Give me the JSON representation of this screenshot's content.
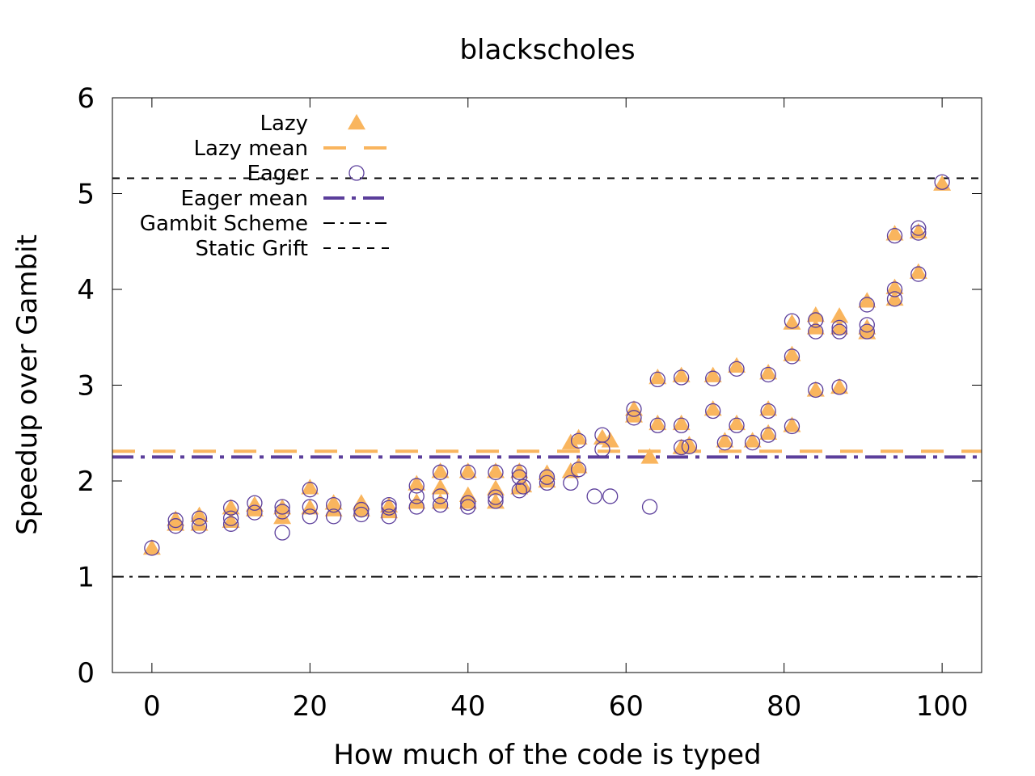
{
  "chart_data": {
    "type": "scatter",
    "title": "blackscholes",
    "xlabel": "How much of the code is typed",
    "ylabel": "Speedup over Gambit",
    "xlim": [
      -5,
      105
    ],
    "ylim": [
      0,
      6
    ],
    "xticks": [
      0,
      20,
      40,
      60,
      80,
      100
    ],
    "yticks": [
      0,
      1,
      2,
      3,
      4,
      5,
      6
    ],
    "grid": false,
    "legend_placement": "top-left",
    "colors": {
      "lazy": "#f9b55e",
      "eager": "#5b3e9b",
      "reference": "#000000"
    },
    "series": [
      {
        "name": "Lazy",
        "marker": "filled-triangle",
        "points": [
          [
            0,
            1.3
          ],
          [
            3,
            1.55
          ],
          [
            3,
            1.6
          ],
          [
            6,
            1.55
          ],
          [
            6,
            1.64
          ],
          [
            10,
            1.58
          ],
          [
            10,
            1.72
          ],
          [
            13,
            1.7
          ],
          [
            13,
            1.75
          ],
          [
            16.5,
            1.62
          ],
          [
            16.5,
            1.72
          ],
          [
            20,
            1.72
          ],
          [
            20,
            1.93
          ],
          [
            23,
            1.7
          ],
          [
            23,
            1.77
          ],
          [
            26.5,
            1.7
          ],
          [
            26.5,
            1.77
          ],
          [
            30,
            1.68
          ],
          [
            30,
            1.74
          ],
          [
            33.5,
            1.78
          ],
          [
            33.5,
            1.97
          ],
          [
            36.5,
            1.78
          ],
          [
            36.5,
            1.93
          ],
          [
            36.5,
            2.1
          ],
          [
            40,
            1.78
          ],
          [
            40,
            1.85
          ],
          [
            40,
            2.1
          ],
          [
            43.5,
            1.78
          ],
          [
            43.5,
            1.92
          ],
          [
            43.5,
            2.1
          ],
          [
            46.5,
            1.93
          ],
          [
            46.5,
            2.1
          ],
          [
            47,
            1.95
          ],
          [
            50,
            2.0
          ],
          [
            50,
            2.08
          ],
          [
            53,
            2.1
          ],
          [
            53,
            2.4
          ],
          [
            54,
            2.15
          ],
          [
            54,
            2.45
          ],
          [
            57,
            2.45
          ],
          [
            58,
            2.42
          ],
          [
            61,
            2.68
          ],
          [
            61,
            2.75
          ],
          [
            63,
            2.25
          ],
          [
            64,
            2.6
          ],
          [
            64,
            3.08
          ],
          [
            67,
            2.35
          ],
          [
            67,
            2.6
          ],
          [
            67,
            3.1
          ],
          [
            68,
            2.38
          ],
          [
            71,
            2.75
          ],
          [
            71,
            3.1
          ],
          [
            72.5,
            2.42
          ],
          [
            74,
            2.6
          ],
          [
            74,
            3.2
          ],
          [
            76,
            2.42
          ],
          [
            78,
            2.5
          ],
          [
            78,
            2.75
          ],
          [
            78,
            3.13
          ],
          [
            81,
            2.58
          ],
          [
            81,
            3.32
          ],
          [
            81,
            3.65
          ],
          [
            84,
            2.95
          ],
          [
            84,
            3.6
          ],
          [
            84,
            3.73
          ],
          [
            87,
            2.98
          ],
          [
            87,
            3.6
          ],
          [
            87,
            3.72
          ],
          [
            90.5,
            3.55
          ],
          [
            90.5,
            3.6
          ],
          [
            90.5,
            3.88
          ],
          [
            94,
            3.9
          ],
          [
            94,
            4.02
          ],
          [
            94,
            4.58
          ],
          [
            97,
            4.18
          ],
          [
            97,
            4.6
          ],
          [
            100,
            5.1
          ]
        ]
      },
      {
        "name": "Lazy mean",
        "line": "long-dash",
        "value": 2.31
      },
      {
        "name": "Eager",
        "marker": "open-circle",
        "points": [
          [
            0,
            1.3
          ],
          [
            3,
            1.53
          ],
          [
            3,
            1.59
          ],
          [
            6,
            1.53
          ],
          [
            6,
            1.61
          ],
          [
            10,
            1.55
          ],
          [
            10,
            1.61
          ],
          [
            10,
            1.72
          ],
          [
            13,
            1.67
          ],
          [
            13,
            1.77
          ],
          [
            16.5,
            1.46
          ],
          [
            16.5,
            1.68
          ],
          [
            16.5,
            1.73
          ],
          [
            20,
            1.63
          ],
          [
            20,
            1.73
          ],
          [
            20,
            1.91
          ],
          [
            23,
            1.63
          ],
          [
            23,
            1.75
          ],
          [
            26.5,
            1.65
          ],
          [
            26.5,
            1.7
          ],
          [
            30,
            1.63
          ],
          [
            30,
            1.72
          ],
          [
            30,
            1.75
          ],
          [
            33.5,
            1.73
          ],
          [
            33.5,
            1.84
          ],
          [
            33.5,
            1.95
          ],
          [
            36.5,
            1.75
          ],
          [
            36.5,
            1.84
          ],
          [
            36.5,
            2.09
          ],
          [
            40,
            1.73
          ],
          [
            40,
            1.77
          ],
          [
            40,
            2.09
          ],
          [
            43.5,
            1.79
          ],
          [
            43.5,
            1.83
          ],
          [
            43.5,
            2.09
          ],
          [
            46.5,
            1.9
          ],
          [
            46.5,
            2.04
          ],
          [
            46.5,
            2.09
          ],
          [
            47,
            1.94
          ],
          [
            50,
            1.98
          ],
          [
            50,
            2.04
          ],
          [
            53,
            1.98
          ],
          [
            54,
            2.12
          ],
          [
            54,
            2.42
          ],
          [
            56,
            1.84
          ],
          [
            57,
            2.33
          ],
          [
            57,
            2.48
          ],
          [
            58,
            1.84
          ],
          [
            61,
            2.66
          ],
          [
            61,
            2.75
          ],
          [
            63,
            1.73
          ],
          [
            64,
            2.58
          ],
          [
            64,
            3.06
          ],
          [
            67,
            2.35
          ],
          [
            67,
            2.58
          ],
          [
            67,
            3.08
          ],
          [
            68,
            2.36
          ],
          [
            71,
            2.73
          ],
          [
            71,
            3.07
          ],
          [
            72.5,
            2.4
          ],
          [
            74,
            2.58
          ],
          [
            74,
            3.17
          ],
          [
            76,
            2.4
          ],
          [
            78,
            2.48
          ],
          [
            78,
            2.73
          ],
          [
            78,
            3.11
          ],
          [
            81,
            2.57
          ],
          [
            81,
            3.3
          ],
          [
            81,
            3.67
          ],
          [
            84,
            2.95
          ],
          [
            84,
            3.56
          ],
          [
            84,
            3.68
          ],
          [
            87,
            2.98
          ],
          [
            87,
            3.56
          ],
          [
            87,
            3.6
          ],
          [
            90.5,
            3.56
          ],
          [
            90.5,
            3.63
          ],
          [
            90.5,
            3.84
          ],
          [
            94,
            3.9
          ],
          [
            94,
            4.0
          ],
          [
            94,
            4.56
          ],
          [
            97,
            4.16
          ],
          [
            97,
            4.59
          ],
          [
            97,
            4.64
          ],
          [
            100,
            5.12
          ]
        ]
      },
      {
        "name": "Eager mean",
        "line": "dash-dot-thick",
        "value": 2.25
      },
      {
        "name": "Gambit Scheme",
        "line": "dash-dot",
        "value": 1.0
      },
      {
        "name": "Static Grift",
        "line": "dashed",
        "value": 5.16
      }
    ]
  }
}
